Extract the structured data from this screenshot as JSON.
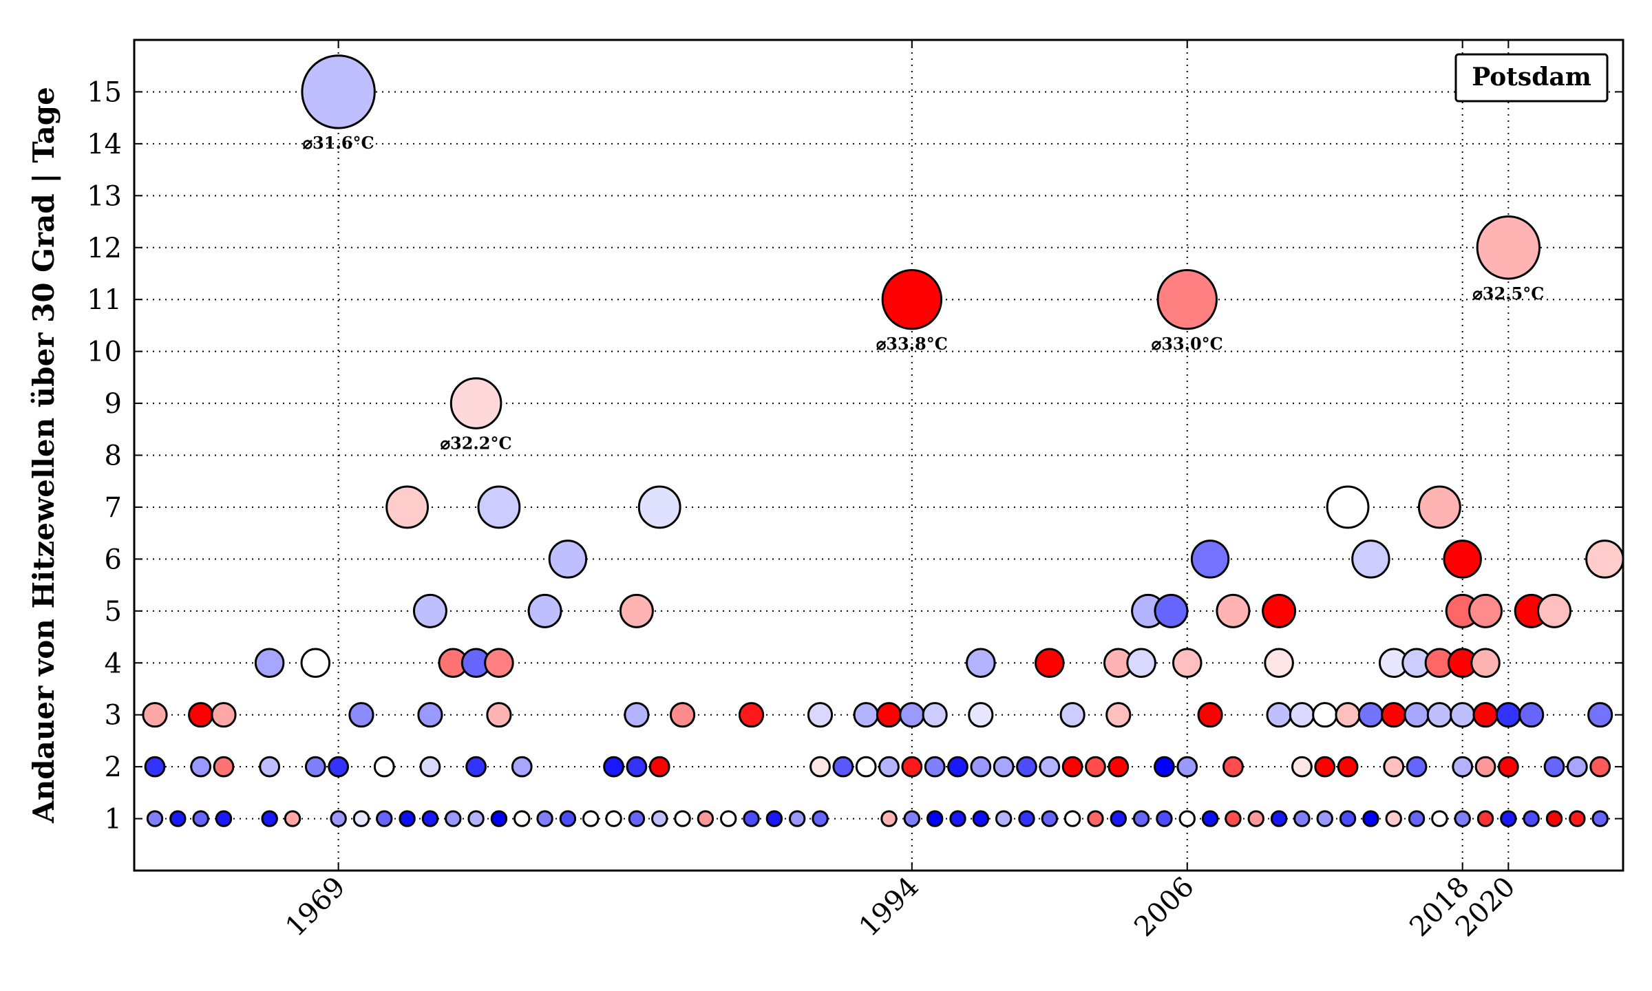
{
  "chart_data": {
    "type": "scatter",
    "title": "",
    "xlabel": "",
    "ylabel": "Andauer von Hitzewellen über 30 Grad | Tage",
    "legend": "Potsdam",
    "legend_position": "top-right",
    "grid": true,
    "xlim": [
      1960.1,
      2025.0
    ],
    "ylim": [
      0,
      16
    ],
    "x_ticks": [
      1969,
      1994,
      2006,
      2018,
      2020
    ],
    "y_ticks": [
      1,
      2,
      3,
      4,
      5,
      6,
      7,
      8,
      9,
      10,
      11,
      12,
      13,
      14,
      15
    ],
    "color_scale": {
      "cold": "#0000ff",
      "neutral": "#ffffff",
      "hot": "#ff0000"
    },
    "annotations": [
      {
        "x": 1969.0,
        "y": 15,
        "text": "⌀31.6°C"
      },
      {
        "x": 1975.0,
        "y": 9,
        "text": "⌀32.2°C"
      },
      {
        "x": 1994.0,
        "y": 11,
        "text": "⌀33.8°C"
      },
      {
        "x": 2006.0,
        "y": 11,
        "text": "⌀33.0°C"
      },
      {
        "x": 2020.0,
        "y": 12,
        "text": "⌀32.5°C"
      }
    ],
    "points": [
      {
        "x": 1969.0,
        "y": 15,
        "c": -0.25
      },
      {
        "x": 1994.0,
        "y": 11,
        "c": 1.0
      },
      {
        "x": 2006.0,
        "y": 11,
        "c": 0.5
      },
      {
        "x": 2020.0,
        "y": 12,
        "c": 0.3
      },
      {
        "x": 1975.0,
        "y": 9,
        "c": 0.15
      },
      {
        "x": 1972.0,
        "y": 7,
        "c": 0.2
      },
      {
        "x": 1976.0,
        "y": 7,
        "c": -0.2
      },
      {
        "x": 1983.0,
        "y": 7,
        "c": -0.12
      },
      {
        "x": 2017.0,
        "y": 7,
        "c": 0.3
      },
      {
        "x": 2013.0,
        "y": 7,
        "c": 0.0
      },
      {
        "x": 1979.0,
        "y": 6,
        "c": -0.25
      },
      {
        "x": 2007.0,
        "y": 6,
        "c": -0.55
      },
      {
        "x": 2014.0,
        "y": 6,
        "c": -0.2
      },
      {
        "x": 2018.0,
        "y": 6,
        "c": 1.0
      },
      {
        "x": 2024.2,
        "y": 6,
        "c": 0.2
      },
      {
        "x": 1973.0,
        "y": 5,
        "c": -0.25
      },
      {
        "x": 1978.0,
        "y": 5,
        "c": -0.25
      },
      {
        "x": 1982.0,
        "y": 5,
        "c": 0.3
      },
      {
        "x": 2004.3,
        "y": 5,
        "c": -0.3
      },
      {
        "x": 2005.3,
        "y": 5,
        "c": -0.6
      },
      {
        "x": 2008.0,
        "y": 5,
        "c": 0.3
      },
      {
        "x": 2010.0,
        "y": 5,
        "c": 1.0
      },
      {
        "x": 2018.0,
        "y": 5,
        "c": 0.6
      },
      {
        "x": 2019.0,
        "y": 5,
        "c": 0.45
      },
      {
        "x": 2021.0,
        "y": 5,
        "c": 1.0
      },
      {
        "x": 2022.0,
        "y": 5,
        "c": 0.25
      },
      {
        "x": 1966.0,
        "y": 4,
        "c": -0.35
      },
      {
        "x": 1968.0,
        "y": 4,
        "c": 0.0
      },
      {
        "x": 1974.0,
        "y": 4,
        "c": 0.55
      },
      {
        "x": 1975.0,
        "y": 4,
        "c": -0.6
      },
      {
        "x": 1976.0,
        "y": 4,
        "c": 0.5
      },
      {
        "x": 1997.0,
        "y": 4,
        "c": -0.3
      },
      {
        "x": 2000.0,
        "y": 4,
        "c": 1.0
      },
      {
        "x": 2003.0,
        "y": 4,
        "c": 0.3
      },
      {
        "x": 2004.0,
        "y": 4,
        "c": -0.15
      },
      {
        "x": 2006.0,
        "y": 4,
        "c": 0.25
      },
      {
        "x": 2010.0,
        "y": 4,
        "c": 0.1
      },
      {
        "x": 2015.0,
        "y": 4,
        "c": -0.1
      },
      {
        "x": 2016.0,
        "y": 4,
        "c": -0.2
      },
      {
        "x": 2017.0,
        "y": 4,
        "c": 0.6
      },
      {
        "x": 2018.0,
        "y": 4,
        "c": 1.0
      },
      {
        "x": 2019.0,
        "y": 4,
        "c": 0.3
      },
      {
        "x": 1961.0,
        "y": 3,
        "c": 0.35
      },
      {
        "x": 1963.0,
        "y": 3,
        "c": 1.0
      },
      {
        "x": 1964.0,
        "y": 3,
        "c": 0.35
      },
      {
        "x": 1970.0,
        "y": 3,
        "c": -0.45
      },
      {
        "x": 1973.0,
        "y": 3,
        "c": -0.4
      },
      {
        "x": 1976.0,
        "y": 3,
        "c": 0.3
      },
      {
        "x": 1982.0,
        "y": 3,
        "c": -0.3
      },
      {
        "x": 1984.0,
        "y": 3,
        "c": 0.45
      },
      {
        "x": 1987.0,
        "y": 3,
        "c": 0.9
      },
      {
        "x": 1990.0,
        "y": 3,
        "c": -0.15
      },
      {
        "x": 1992.0,
        "y": 3,
        "c": -0.3
      },
      {
        "x": 1993.0,
        "y": 3,
        "c": 1.0
      },
      {
        "x": 1994.0,
        "y": 3,
        "c": -0.4
      },
      {
        "x": 1995.0,
        "y": 3,
        "c": -0.2
      },
      {
        "x": 1997.0,
        "y": 3,
        "c": -0.1
      },
      {
        "x": 2001.0,
        "y": 3,
        "c": -0.2
      },
      {
        "x": 2003.0,
        "y": 3,
        "c": 0.25
      },
      {
        "x": 2007.0,
        "y": 3,
        "c": 1.0
      },
      {
        "x": 2010.0,
        "y": 3,
        "c": -0.25
      },
      {
        "x": 2011.0,
        "y": 3,
        "c": -0.15
      },
      {
        "x": 2012.0,
        "y": 3,
        "c": 0.0
      },
      {
        "x": 2013.0,
        "y": 3,
        "c": 0.25
      },
      {
        "x": 2014.0,
        "y": 3,
        "c": -0.55
      },
      {
        "x": 2015.0,
        "y": 3,
        "c": 1.0
      },
      {
        "x": 2016.0,
        "y": 3,
        "c": -0.35
      },
      {
        "x": 2017.0,
        "y": 3,
        "c": -0.25
      },
      {
        "x": 2018.0,
        "y": 3,
        "c": -0.25
      },
      {
        "x": 2019.0,
        "y": 3,
        "c": 1.0
      },
      {
        "x": 2020.0,
        "y": 3,
        "c": -0.8
      },
      {
        "x": 2021.0,
        "y": 3,
        "c": -0.6
      },
      {
        "x": 2024.0,
        "y": 3,
        "c": -0.55
      },
      {
        "x": 1961.0,
        "y": 2,
        "c": -0.8
      },
      {
        "x": 1963.0,
        "y": 2,
        "c": -0.4
      },
      {
        "x": 1964.0,
        "y": 2,
        "c": 0.55
      },
      {
        "x": 1966.0,
        "y": 2,
        "c": -0.25
      },
      {
        "x": 1968.0,
        "y": 2,
        "c": -0.5
      },
      {
        "x": 1969.0,
        "y": 2,
        "c": -0.8
      },
      {
        "x": 1971.0,
        "y": 2,
        "c": 0.0
      },
      {
        "x": 1973.0,
        "y": 2,
        "c": -0.15
      },
      {
        "x": 1975.0,
        "y": 2,
        "c": -0.8
      },
      {
        "x": 1977.0,
        "y": 2,
        "c": -0.35
      },
      {
        "x": 1981.0,
        "y": 2,
        "c": -0.9
      },
      {
        "x": 1982.0,
        "y": 2,
        "c": -0.8
      },
      {
        "x": 1983.0,
        "y": 2,
        "c": 1.0
      },
      {
        "x": 1990.0,
        "y": 2,
        "c": 0.1
      },
      {
        "x": 1991.0,
        "y": 2,
        "c": -0.65
      },
      {
        "x": 1992.0,
        "y": 2,
        "c": 0.0
      },
      {
        "x": 1993.0,
        "y": 2,
        "c": -0.3
      },
      {
        "x": 1994.0,
        "y": 2,
        "c": 0.9
      },
      {
        "x": 1995.0,
        "y": 2,
        "c": -0.5
      },
      {
        "x": 1996.0,
        "y": 2,
        "c": -0.9
      },
      {
        "x": 1997.0,
        "y": 2,
        "c": -0.4
      },
      {
        "x": 1998.0,
        "y": 2,
        "c": -0.35
      },
      {
        "x": 1999.0,
        "y": 2,
        "c": -0.7
      },
      {
        "x": 2000.0,
        "y": 2,
        "c": -0.3
      },
      {
        "x": 2001.0,
        "y": 2,
        "c": 1.0
      },
      {
        "x": 2002.0,
        "y": 2,
        "c": 0.7
      },
      {
        "x": 2003.0,
        "y": 2,
        "c": 1.0
      },
      {
        "x": 2005.0,
        "y": 2,
        "c": -1.0
      },
      {
        "x": 2006.0,
        "y": 2,
        "c": -0.4
      },
      {
        "x": 2008.0,
        "y": 2,
        "c": 0.7
      },
      {
        "x": 2011.0,
        "y": 2,
        "c": 0.1
      },
      {
        "x": 2012.0,
        "y": 2,
        "c": 1.0
      },
      {
        "x": 2013.0,
        "y": 2,
        "c": 1.0
      },
      {
        "x": 2015.0,
        "y": 2,
        "c": 0.25
      },
      {
        "x": 2016.0,
        "y": 2,
        "c": -0.6
      },
      {
        "x": 2018.0,
        "y": 2,
        "c": -0.3
      },
      {
        "x": 2019.0,
        "y": 2,
        "c": 0.4
      },
      {
        "x": 2020.0,
        "y": 2,
        "c": 1.0
      },
      {
        "x": 2022.0,
        "y": 2,
        "c": -0.6
      },
      {
        "x": 2023.0,
        "y": 2,
        "c": -0.35
      },
      {
        "x": 2024.0,
        "y": 2,
        "c": 0.65
      },
      {
        "x": 1961.0,
        "y": 1,
        "c": -0.5
      },
      {
        "x": 1962.0,
        "y": 1,
        "c": -0.9
      },
      {
        "x": 1963.0,
        "y": 1,
        "c": -0.6
      },
      {
        "x": 1964.0,
        "y": 1,
        "c": -0.9
      },
      {
        "x": 1966.0,
        "y": 1,
        "c": -0.9
      },
      {
        "x": 1967.0,
        "y": 1,
        "c": 0.35
      },
      {
        "x": 1969.0,
        "y": 1,
        "c": -0.4
      },
      {
        "x": 1970.0,
        "y": 1,
        "c": -0.1
      },
      {
        "x": 1971.0,
        "y": 1,
        "c": -0.6
      },
      {
        "x": 1972.0,
        "y": 1,
        "c": -0.95
      },
      {
        "x": 1973.0,
        "y": 1,
        "c": -0.9
      },
      {
        "x": 1974.0,
        "y": 1,
        "c": -0.4
      },
      {
        "x": 1975.0,
        "y": 1,
        "c": -0.3
      },
      {
        "x": 1976.0,
        "y": 1,
        "c": -1.0
      },
      {
        "x": 1977.0,
        "y": 1,
        "c": 0.0
      },
      {
        "x": 1978.0,
        "y": 1,
        "c": -0.5
      },
      {
        "x": 1979.0,
        "y": 1,
        "c": -0.7
      },
      {
        "x": 1980.0,
        "y": 1,
        "c": 0.0
      },
      {
        "x": 1981.0,
        "y": 1,
        "c": 0.0
      },
      {
        "x": 1982.0,
        "y": 1,
        "c": -0.6
      },
      {
        "x": 1983.0,
        "y": 1,
        "c": -0.25
      },
      {
        "x": 1984.0,
        "y": 1,
        "c": 0.0
      },
      {
        "x": 1985.0,
        "y": 1,
        "c": 0.4
      },
      {
        "x": 1986.0,
        "y": 1,
        "c": 0.0
      },
      {
        "x": 1987.0,
        "y": 1,
        "c": -0.7
      },
      {
        "x": 1988.0,
        "y": 1,
        "c": -0.9
      },
      {
        "x": 1989.0,
        "y": 1,
        "c": -0.4
      },
      {
        "x": 1990.0,
        "y": 1,
        "c": -0.6
      },
      {
        "x": 1993.0,
        "y": 1,
        "c": 0.3
      },
      {
        "x": 1994.0,
        "y": 1,
        "c": -0.5
      },
      {
        "x": 1995.0,
        "y": 1,
        "c": -1.0
      },
      {
        "x": 1996.0,
        "y": 1,
        "c": -0.9
      },
      {
        "x": 1997.0,
        "y": 1,
        "c": -0.95
      },
      {
        "x": 1998.0,
        "y": 1,
        "c": -0.3
      },
      {
        "x": 1999.0,
        "y": 1,
        "c": -0.8
      },
      {
        "x": 2000.0,
        "y": 1,
        "c": -0.6
      },
      {
        "x": 2001.0,
        "y": 1,
        "c": 0.0
      },
      {
        "x": 2002.0,
        "y": 1,
        "c": 0.6
      },
      {
        "x": 2003.0,
        "y": 1,
        "c": -0.9
      },
      {
        "x": 2004.0,
        "y": 1,
        "c": -0.6
      },
      {
        "x": 2005.0,
        "y": 1,
        "c": -0.7
      },
      {
        "x": 2006.0,
        "y": 1,
        "c": 0.0
      },
      {
        "x": 2007.0,
        "y": 1,
        "c": -0.95
      },
      {
        "x": 2008.0,
        "y": 1,
        "c": 0.7
      },
      {
        "x": 2009.0,
        "y": 1,
        "c": 0.4
      },
      {
        "x": 2010.0,
        "y": 1,
        "c": -0.9
      },
      {
        "x": 2011.0,
        "y": 1,
        "c": -0.5
      },
      {
        "x": 2012.0,
        "y": 1,
        "c": -0.4
      },
      {
        "x": 2013.0,
        "y": 1,
        "c": -0.7
      },
      {
        "x": 2014.0,
        "y": 1,
        "c": -1.0
      },
      {
        "x": 2015.0,
        "y": 1,
        "c": 0.2
      },
      {
        "x": 2016.0,
        "y": 1,
        "c": -0.6
      },
      {
        "x": 2017.0,
        "y": 1,
        "c": 0.0
      },
      {
        "x": 2018.0,
        "y": 1,
        "c": -0.5
      },
      {
        "x": 2019.0,
        "y": 1,
        "c": 0.8
      },
      {
        "x": 2020.0,
        "y": 1,
        "c": -0.9
      },
      {
        "x": 2021.0,
        "y": 1,
        "c": -0.7
      },
      {
        "x": 2022.0,
        "y": 1,
        "c": 1.0
      },
      {
        "x": 2023.0,
        "y": 1,
        "c": 0.9
      },
      {
        "x": 2024.0,
        "y": 1,
        "c": -0.6
      }
    ]
  }
}
